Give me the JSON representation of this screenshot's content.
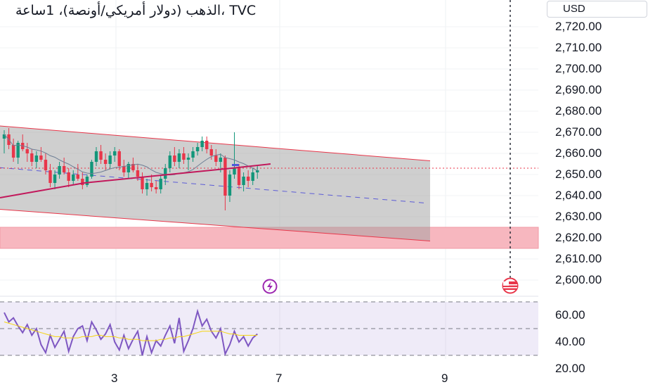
{
  "header": {
    "title": "الذهب (دولار أمريكي/أونصة)، 1ساعة، TVC",
    "currency": "USD"
  },
  "chart_data": {
    "type": "candlestick",
    "price_axis": {
      "range": [
        2595,
        2728
      ],
      "ticks": [
        "2,720.00",
        "2,710.00",
        "2,700.00",
        "2,690.00",
        "2,680.00",
        "2,670.00",
        "2,660.00",
        "2,650.00",
        "2,640.00",
        "2,630.00",
        "2,620.00",
        "2,610.00",
        "2,600.00"
      ]
    },
    "time_axis": {
      "ticks": [
        "3",
        "7",
        "9"
      ]
    },
    "current_price": 2653.0,
    "channel": {
      "upper_start": 2673,
      "upper_end": 2656.5,
      "lower_start": 2633.5,
      "lower_end": 2618.5
    },
    "demand_zone": [
      2615,
      2625
    ],
    "candles": [
      [
        2667,
        2671,
        2660,
        2669
      ],
      [
        2669,
        2672,
        2662,
        2664
      ],
      [
        2664,
        2667,
        2656,
        2658
      ],
      [
        2658,
        2666,
        2655,
        2665
      ],
      [
        2665,
        2669,
        2661,
        2662
      ],
      [
        2662,
        2665,
        2656,
        2660
      ],
      [
        2660,
        2662,
        2654,
        2656
      ],
      [
        2656,
        2661,
        2653,
        2659
      ],
      [
        2659,
        2663,
        2656,
        2657
      ],
      [
        2657,
        2660,
        2650,
        2652
      ],
      [
        2652,
        2655,
        2644,
        2646
      ],
      [
        2646,
        2652,
        2643,
        2650
      ],
      [
        2650,
        2656,
        2648,
        2654
      ],
      [
        2654,
        2658,
        2650,
        2651
      ],
      [
        2651,
        2653,
        2644,
        2647
      ],
      [
        2647,
        2652,
        2645,
        2650
      ],
      [
        2650,
        2655,
        2647,
        2648
      ],
      [
        2648,
        2651,
        2643,
        2645
      ],
      [
        2645,
        2650,
        2644,
        2649
      ],
      [
        2649,
        2657,
        2648,
        2656
      ],
      [
        2656,
        2663,
        2654,
        2661
      ],
      [
        2661,
        2664,
        2655,
        2657
      ],
      [
        2657,
        2660,
        2652,
        2655
      ],
      [
        2655,
        2661,
        2653,
        2659
      ],
      [
        2659,
        2663,
        2656,
        2661
      ],
      [
        2661,
        2662,
        2652,
        2654
      ],
      [
        2654,
        2657,
        2649,
        2651
      ],
      [
        2651,
        2656,
        2648,
        2655
      ],
      [
        2655,
        2658,
        2651,
        2652
      ],
      [
        2652,
        2655,
        2647,
        2649
      ],
      [
        2649,
        2651,
        2641,
        2643
      ],
      [
        2643,
        2648,
        2640,
        2646
      ],
      [
        2646,
        2650,
        2642,
        2644
      ],
      [
        2644,
        2647,
        2641,
        2643
      ],
      [
        2643,
        2650,
        2641,
        2648
      ],
      [
        2648,
        2655,
        2645,
        2653
      ],
      [
        2653,
        2661,
        2651,
        2659
      ],
      [
        2659,
        2663,
        2654,
        2656
      ],
      [
        2656,
        2662,
        2653,
        2660
      ],
      [
        2660,
        2663,
        2655,
        2657
      ],
      [
        2657,
        2660,
        2652,
        2658
      ],
      [
        2658,
        2663,
        2656,
        2661
      ],
      [
        2661,
        2665,
        2659,
        2663
      ],
      [
        2663,
        2668,
        2661,
        2666
      ],
      [
        2666,
        2668,
        2660,
        2662
      ],
      [
        2662,
        2664,
        2657,
        2659
      ],
      [
        2659,
        2662,
        2654,
        2656
      ],
      [
        2656,
        2660,
        2651,
        2658
      ],
      [
        2658,
        2659,
        2633,
        2640
      ],
      [
        2640,
        2652,
        2637,
        2650
      ],
      [
        2650,
        2670,
        2648,
        2653
      ],
      [
        2653,
        2655,
        2643,
        2645
      ],
      [
        2645,
        2651,
        2642,
        2649
      ],
      [
        2649,
        2652,
        2644,
        2647
      ],
      [
        2647,
        2653,
        2645,
        2651
      ],
      [
        2651,
        2654,
        2648,
        2652
      ]
    ],
    "osc_axis": {
      "range": [
        20,
        73
      ],
      "ticks": [
        "60.00",
        "40.00",
        "20.00"
      ]
    },
    "osc_levels": [
      70,
      50,
      30
    ],
    "rsi": [
      62,
      55,
      58,
      52,
      47,
      53,
      45,
      50,
      38,
      32,
      45,
      36,
      42,
      48,
      33,
      44,
      50,
      52,
      41,
      55,
      49,
      42,
      46,
      53,
      40,
      34,
      45,
      35,
      42,
      48,
      30,
      44,
      32,
      41,
      37,
      45,
      52,
      39,
      58,
      33,
      41,
      50,
      63,
      52,
      57,
      48,
      43,
      50,
      31,
      38,
      48,
      40,
      44,
      37,
      43,
      46
    ],
    "rsi_ma": [
      55,
      54,
      53,
      52,
      51,
      50,
      49,
      48,
      47,
      46,
      45,
      44,
      44,
      43,
      43,
      43,
      43,
      44,
      44,
      44,
      45,
      45,
      44,
      44,
      44,
      43,
      43,
      42,
      42,
      42,
      41,
      41,
      41,
      41,
      42,
      42,
      43,
      43,
      44,
      44,
      45,
      46,
      47,
      48,
      48,
      48,
      48,
      48,
      47,
      46,
      46,
      45,
      45,
      45,
      45,
      45
    ]
  }
}
